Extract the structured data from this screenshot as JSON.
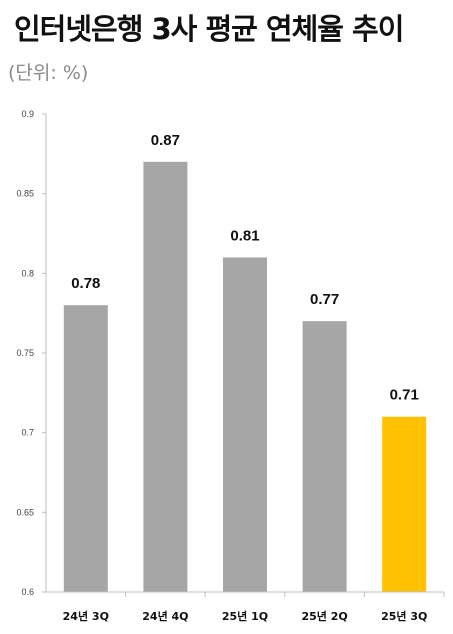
{
  "chart_data": {
    "type": "bar",
    "title": "인터넷은행 3사 평균 연체율 추이",
    "unit_label": "(단위: %)",
    "categories": [
      "24년 3Q",
      "24년 4Q",
      "25년 1Q",
      "25년 2Q",
      "25년 3Q"
    ],
    "values": [
      0.78,
      0.87,
      0.81,
      0.77,
      0.71
    ],
    "ylim": [
      0.6,
      0.9
    ],
    "yticks": [
      "0.6",
      "0.65",
      "0.7",
      "0.75",
      "0.8",
      "0.85",
      "0.9"
    ],
    "grid": false,
    "colors": {
      "default_bar": "#a6a6a6",
      "highlight_bar": "#ffc000",
      "axis": "#bfbfbf"
    },
    "highlight_category": "25년 3Q"
  }
}
